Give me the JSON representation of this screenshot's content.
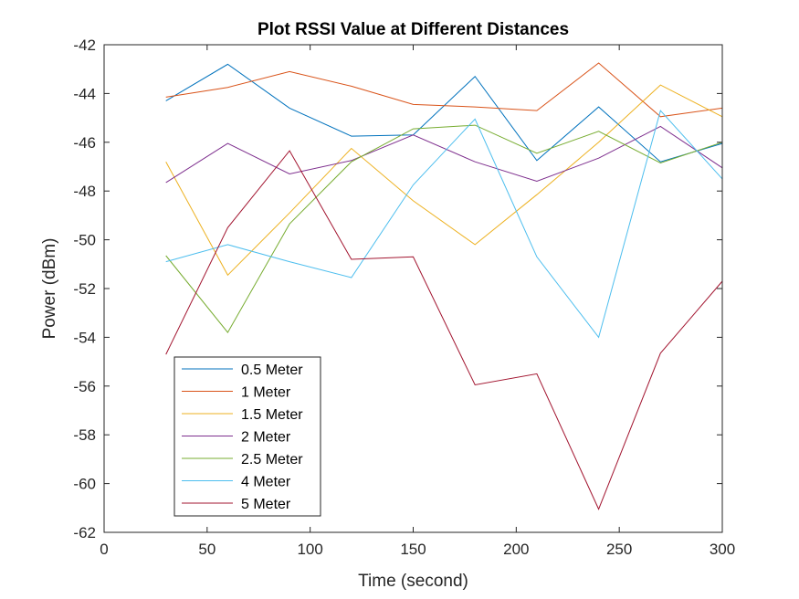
{
  "chart_data": {
    "type": "line",
    "title": "Plot RSSI Value at Different Distances",
    "xlabel": "Time (second)",
    "ylabel": "Power (dBm)",
    "xlim": [
      0,
      300
    ],
    "ylim": [
      -62,
      -42
    ],
    "xticks": [
      0,
      50,
      100,
      150,
      200,
      250,
      300
    ],
    "yticks": [
      -62,
      -60,
      -58,
      -56,
      -54,
      -52,
      -50,
      -48,
      -46,
      -44,
      -42
    ],
    "grid": false,
    "legend_position": "bottom-left",
    "x": [
      30,
      60,
      90,
      120,
      150,
      180,
      210,
      240,
      270,
      300
    ],
    "series": [
      {
        "name": "0.5 Meter",
        "color": "#0072BD",
        "values": [
          -44.3,
          -42.8,
          -44.6,
          -45.75,
          -45.7,
          -43.3,
          -46.75,
          -44.55,
          -46.8,
          -46.05
        ]
      },
      {
        "name": "1 Meter",
        "color": "#D95319",
        "values": [
          -44.15,
          -43.75,
          -43.1,
          -43.7,
          -44.45,
          -44.55,
          -44.7,
          -42.75,
          -44.95,
          -44.6
        ]
      },
      {
        "name": "1.5 Meter",
        "color": "#EDB120",
        "values": [
          -46.8,
          -51.45,
          -48.9,
          -46.25,
          -48.4,
          -50.2,
          -48.15,
          -46.0,
          -43.65,
          -44.95
        ]
      },
      {
        "name": "2 Meter",
        "color": "#7E2F8E",
        "values": [
          -47.65,
          -46.05,
          -47.3,
          -46.75,
          -45.7,
          -46.8,
          -47.6,
          -46.65,
          -45.35,
          -47.05
        ]
      },
      {
        "name": "2.5 Meter",
        "color": "#77AC30",
        "values": [
          -50.65,
          -53.8,
          -49.35,
          -46.8,
          -45.45,
          -45.3,
          -46.45,
          -45.55,
          -46.85,
          -46.0
        ]
      },
      {
        "name": "4 Meter",
        "color": "#4DBEEE",
        "values": [
          -50.9,
          -50.2,
          -50.9,
          -51.55,
          -47.75,
          -45.05,
          -50.7,
          -54.0,
          -44.7,
          -47.5
        ]
      },
      {
        "name": "5 Meter",
        "color": "#A2142F",
        "values": [
          -54.7,
          -49.5,
          -46.35,
          -50.8,
          -50.7,
          -55.95,
          -55.5,
          -61.05,
          -54.65,
          -51.7
        ]
      }
    ]
  }
}
